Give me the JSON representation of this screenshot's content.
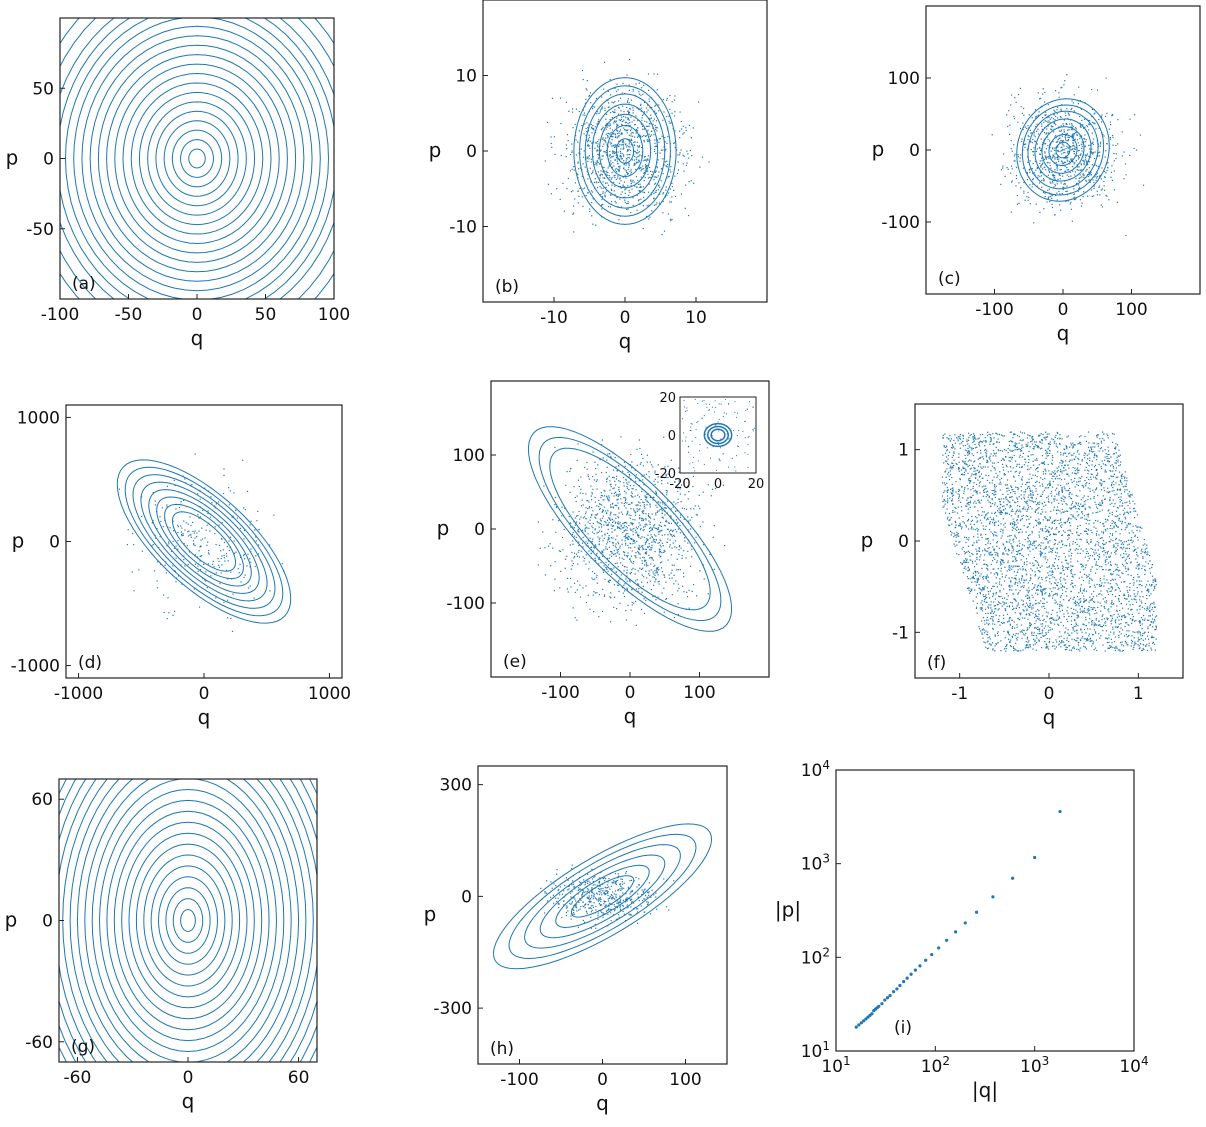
{
  "accent_color": "#1f77b4",
  "chart_data": [
    {
      "type": "scatter",
      "panel_label": "(a)",
      "xlabel": "q",
      "ylabel": "p",
      "xlim": [
        -100,
        100
      ],
      "ylim": [
        -100,
        100
      ],
      "x_ticks": [
        {
          "v": -100,
          "t": "-100"
        },
        {
          "v": -50,
          "t": "-50"
        },
        {
          "v": 0,
          "t": "0"
        },
        {
          "v": 50,
          "t": "50"
        },
        {
          "v": 100,
          "t": "100"
        }
      ],
      "y_ticks": [
        {
          "v": 50,
          "t": "50"
        },
        {
          "v": 0,
          "t": "0"
        },
        {
          "v": -50,
          "t": "-50"
        }
      ],
      "pattern": {
        "kind": "orbits",
        "cx": 0,
        "cy": 0,
        "rx": [
          6,
          12,
          18,
          24,
          30,
          36,
          42,
          48,
          54,
          60,
          66,
          72,
          78,
          84,
          90,
          96,
          102,
          108,
          116,
          124
        ],
        "ratio": 1.12,
        "tilt": 0
      }
    },
    {
      "type": "scatter",
      "panel_label": "(b)",
      "xlabel": "q",
      "ylabel": "p",
      "xlim": [
        -20,
        20
      ],
      "ylim": [
        -20,
        20
      ],
      "x_ticks": [
        {
          "v": -10,
          "t": "-10"
        },
        {
          "v": 0,
          "t": "0"
        },
        {
          "v": 10,
          "t": "10"
        }
      ],
      "y_ticks": [
        {
          "v": 10,
          "t": "10"
        },
        {
          "v": 0,
          "t": "0"
        },
        {
          "v": -10,
          "t": "-10"
        }
      ],
      "pattern": {
        "kind": "orbits",
        "cx": 0,
        "cy": 0,
        "rx": [
          1.2,
          2.5,
          3.6,
          4.6,
          5.6,
          6.4,
          7.2
        ],
        "ratio": 1.35,
        "tilt": 0,
        "cloud": {
          "r": 16,
          "n": 1100
        }
      }
    },
    {
      "type": "scatter",
      "panel_label": "(c)",
      "xlabel": "q",
      "ylabel": "p",
      "xlim": [
        -200,
        200
      ],
      "ylim": [
        -200,
        200
      ],
      "x_ticks": [
        {
          "v": -100,
          "t": "-100"
        },
        {
          "v": 0,
          "t": "0"
        },
        {
          "v": 100,
          "t": "100"
        }
      ],
      "y_ticks": [
        {
          "v": 100,
          "t": "100"
        },
        {
          "v": 0,
          "t": "0"
        },
        {
          "v": -100,
          "t": "-100"
        }
      ],
      "pattern": {
        "kind": "orbits",
        "cx": 0,
        "cy": 0,
        "rx": [
          10,
          20,
          30,
          40,
          50,
          58,
          66
        ],
        "ratio": 1.1,
        "tilt": -0.5,
        "cloud": {
          "r": 150,
          "n": 900
        }
      }
    },
    {
      "type": "scatter",
      "panel_label": "(d)",
      "xlabel": "q",
      "ylabel": "p",
      "xlim": [
        -1100,
        1100
      ],
      "ylim": [
        -1100,
        1100
      ],
      "x_ticks": [
        {
          "v": -1000,
          "t": "-1000"
        },
        {
          "v": 0,
          "t": "0"
        },
        {
          "v": 1000,
          "t": "1000"
        }
      ],
      "y_ticks": [
        {
          "v": 1000,
          "t": "1000"
        },
        {
          "v": 0,
          "t": "0"
        },
        {
          "v": -1000,
          "t": "-1000"
        }
      ],
      "pattern": {
        "kind": "orbits",
        "cx": 0,
        "cy": 0,
        "rx": [
          320,
          400,
          480,
          560,
          640,
          720,
          800,
          880
        ],
        "ratio": 0.42,
        "tilt": -0.75,
        "cloud": {
          "r": 1000,
          "n": 300
        }
      }
    },
    {
      "type": "scatter",
      "panel_label": "(e)",
      "xlabel": "q",
      "ylabel": "p",
      "xlim": [
        -200,
        200
      ],
      "ylim": [
        -200,
        200
      ],
      "x_ticks": [
        {
          "v": -100,
          "t": "-100"
        },
        {
          "v": 0,
          "t": "0"
        },
        {
          "v": 100,
          "t": "100"
        }
      ],
      "y_ticks": [
        {
          "v": 100,
          "t": "100"
        },
        {
          "v": 0,
          "t": "0"
        },
        {
          "v": -100,
          "t": "-100"
        }
      ],
      "pattern": {
        "kind": "orbits",
        "cx": 0,
        "cy": 0,
        "rx": [
          150,
          170,
          190
        ],
        "ratio": 0.35,
        "tilt": -0.75,
        "cloud": {
          "r": 190,
          "n": 1300
        }
      },
      "inset": {
        "xlim": [
          -20,
          20
        ],
        "ylim": [
          -20,
          20
        ],
        "x_ticks": [
          {
            "v": -20,
            "t": "-20"
          },
          {
            "v": 0,
            "t": "0"
          },
          {
            "v": 20,
            "t": "20"
          }
        ],
        "y_ticks": [
          {
            "v": 20,
            "t": "20"
          },
          {
            "v": 0,
            "t": "0"
          },
          {
            "v": -20,
            "t": "-20"
          }
        ]
      }
    },
    {
      "type": "scatter",
      "panel_label": "(f)",
      "xlabel": "q",
      "ylabel": "p",
      "xlim": [
        -1.5,
        1.5
      ],
      "ylim": [
        -1.5,
        1.5
      ],
      "x_ticks": [
        {
          "v": -1,
          "t": "-1"
        },
        {
          "v": 0,
          "t": "0"
        },
        {
          "v": 1,
          "t": "1"
        }
      ],
      "y_ticks": [
        {
          "v": 1,
          "t": "1"
        },
        {
          "v": 0,
          "t": "0"
        },
        {
          "v": -1,
          "t": "-1"
        }
      ],
      "pattern": {
        "kind": "chaotic",
        "cloud": {
          "r": 1.2,
          "n": 4500
        }
      }
    },
    {
      "type": "scatter",
      "panel_label": "(g)",
      "xlabel": "q",
      "ylabel": "p",
      "xlim": [
        -70,
        70
      ],
      "ylim": [
        -70,
        70
      ],
      "x_ticks": [
        {
          "v": -60,
          "t": "-60"
        },
        {
          "v": 0,
          "t": "0"
        },
        {
          "v": 60,
          "t": "60"
        }
      ],
      "y_ticks": [
        {
          "v": 60,
          "t": "60"
        },
        {
          "v": 0,
          "t": "0"
        },
        {
          "v": -60,
          "t": "-60"
        }
      ],
      "pattern": {
        "kind": "orbits",
        "cx": 0,
        "cy": 0,
        "rx": [
          4,
          8,
          12,
          16,
          20,
          24,
          28,
          32,
          36,
          40,
          44,
          48,
          52,
          56,
          60,
          64,
          68,
          72,
          76,
          80,
          84,
          88
        ],
        "ratio": 1.35,
        "tilt": 0
      }
    },
    {
      "type": "scatter",
      "panel_label": "(h)",
      "xlabel": "q",
      "ylabel": "p",
      "xlim": [
        -150,
        150
      ],
      "ylim": [
        -450,
        350
      ],
      "x_ticks": [
        {
          "v": -100,
          "t": "-100"
        },
        {
          "v": 0,
          "t": "0"
        },
        {
          "v": 100,
          "t": "100"
        }
      ],
      "y_ticks": [
        {
          "v": 300,
          "t": "300"
        },
        {
          "v": 0,
          "t": "0"
        },
        {
          "v": -300,
          "t": "-300"
        }
      ],
      "pattern": {
        "kind": "orbits",
        "cx": 0,
        "cy": 0,
        "rx": [
          20,
          30,
          40,
          50,
          60,
          70
        ],
        "ratio": 3.2,
        "tilt": -0.55,
        "cloud": {
          "r": 120,
          "n": 500
        }
      }
    },
    {
      "type": "scatter",
      "panel_label": "(i)",
      "xlabel": "|q|",
      "ylabel": "|p|",
      "xscale": "log",
      "yscale": "log",
      "xlim": [
        10,
        10000
      ],
      "ylim": [
        10,
        10000
      ],
      "x_ticks": [
        {
          "v": 10,
          "t": "1"
        },
        {
          "v": 100,
          "t": "2"
        },
        {
          "v": 1000,
          "t": "3"
        },
        {
          "v": 10000,
          "t": "4"
        }
      ],
      "y_ticks": [
        {
          "v": 10000,
          "t": "4"
        },
        {
          "v": 1000,
          "t": "3"
        },
        {
          "v": 100,
          "t": "2"
        },
        {
          "v": 10,
          "t": "1"
        }
      ],
      "tick_base": "10",
      "x": [
        16,
        17,
        18,
        19,
        20,
        21,
        22,
        23,
        24,
        25,
        26,
        27,
        29,
        31,
        33,
        35,
        38,
        41,
        44,
        48,
        52,
        57,
        63,
        70,
        80,
        92,
        108,
        130,
        160,
        200,
        260,
        380,
        600,
        1000,
        1800
      ],
      "y": [
        18,
        19,
        20,
        21,
        22,
        23,
        24,
        25,
        27,
        28,
        29,
        30,
        32,
        35,
        37,
        39,
        43,
        46,
        50,
        55,
        60,
        66,
        73,
        81,
        93,
        107,
        126,
        152,
        187,
        233,
        303,
        442,
        699,
        1165,
        3600
      ]
    }
  ]
}
